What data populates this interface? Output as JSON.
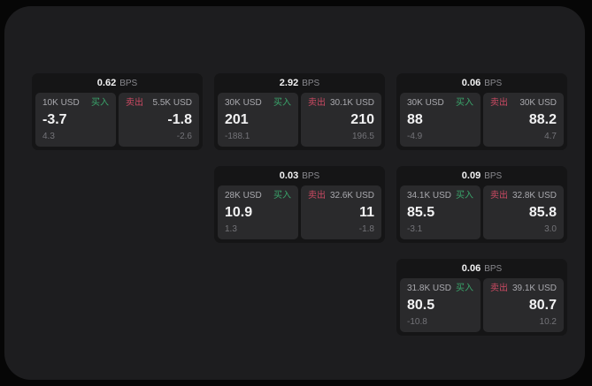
{
  "labels": {
    "bps_unit": "BPS",
    "buy": "买入",
    "sell": "卖出"
  },
  "colors": {
    "page_bg": "#060606",
    "window_bg": "#1d1d1f",
    "card_bg": "#151516",
    "panel_bg": "#2a2a2c",
    "buy_green": "#3aa56b",
    "sell_red": "#cc4a63"
  },
  "cards": [
    {
      "grid": {
        "row": 1,
        "col": 1
      },
      "bps": "0.62",
      "buy": {
        "amount": "10K USD",
        "value": "-3.7",
        "sub": "4.3"
      },
      "sell": {
        "amount": "5.5K USD",
        "value": "-1.8",
        "sub": "-2.6"
      }
    },
    {
      "grid": {
        "row": 1,
        "col": 2
      },
      "bps": "2.92",
      "buy": {
        "amount": "30K USD",
        "value": "201",
        "sub": "-188.1"
      },
      "sell": {
        "amount": "30.1K USD",
        "value": "210",
        "sub": "196.5"
      }
    },
    {
      "grid": {
        "row": 1,
        "col": 3
      },
      "bps": "0.06",
      "buy": {
        "amount": "30K USD",
        "value": "88",
        "sub": "-4.9"
      },
      "sell": {
        "amount": "30K USD",
        "value": "88.2",
        "sub": "4.7"
      }
    },
    {
      "grid": {
        "row": 2,
        "col": 2
      },
      "bps": "0.03",
      "buy": {
        "amount": "28K USD",
        "value": "10.9",
        "sub": "1.3"
      },
      "sell": {
        "amount": "32.6K USD",
        "value": "11",
        "sub": "-1.8"
      }
    },
    {
      "grid": {
        "row": 2,
        "col": 3
      },
      "bps": "0.09",
      "buy": {
        "amount": "34.1K USD",
        "value": "85.5",
        "sub": "-3.1"
      },
      "sell": {
        "amount": "32.8K USD",
        "value": "85.8",
        "sub": "3.0"
      }
    },
    {
      "grid": {
        "row": 3,
        "col": 3
      },
      "bps": "0.06",
      "buy": {
        "amount": "31.8K USD",
        "value": "80.5",
        "sub": "-10.8"
      },
      "sell": {
        "amount": "39.1K USD",
        "value": "80.7",
        "sub": "10.2"
      }
    }
  ]
}
